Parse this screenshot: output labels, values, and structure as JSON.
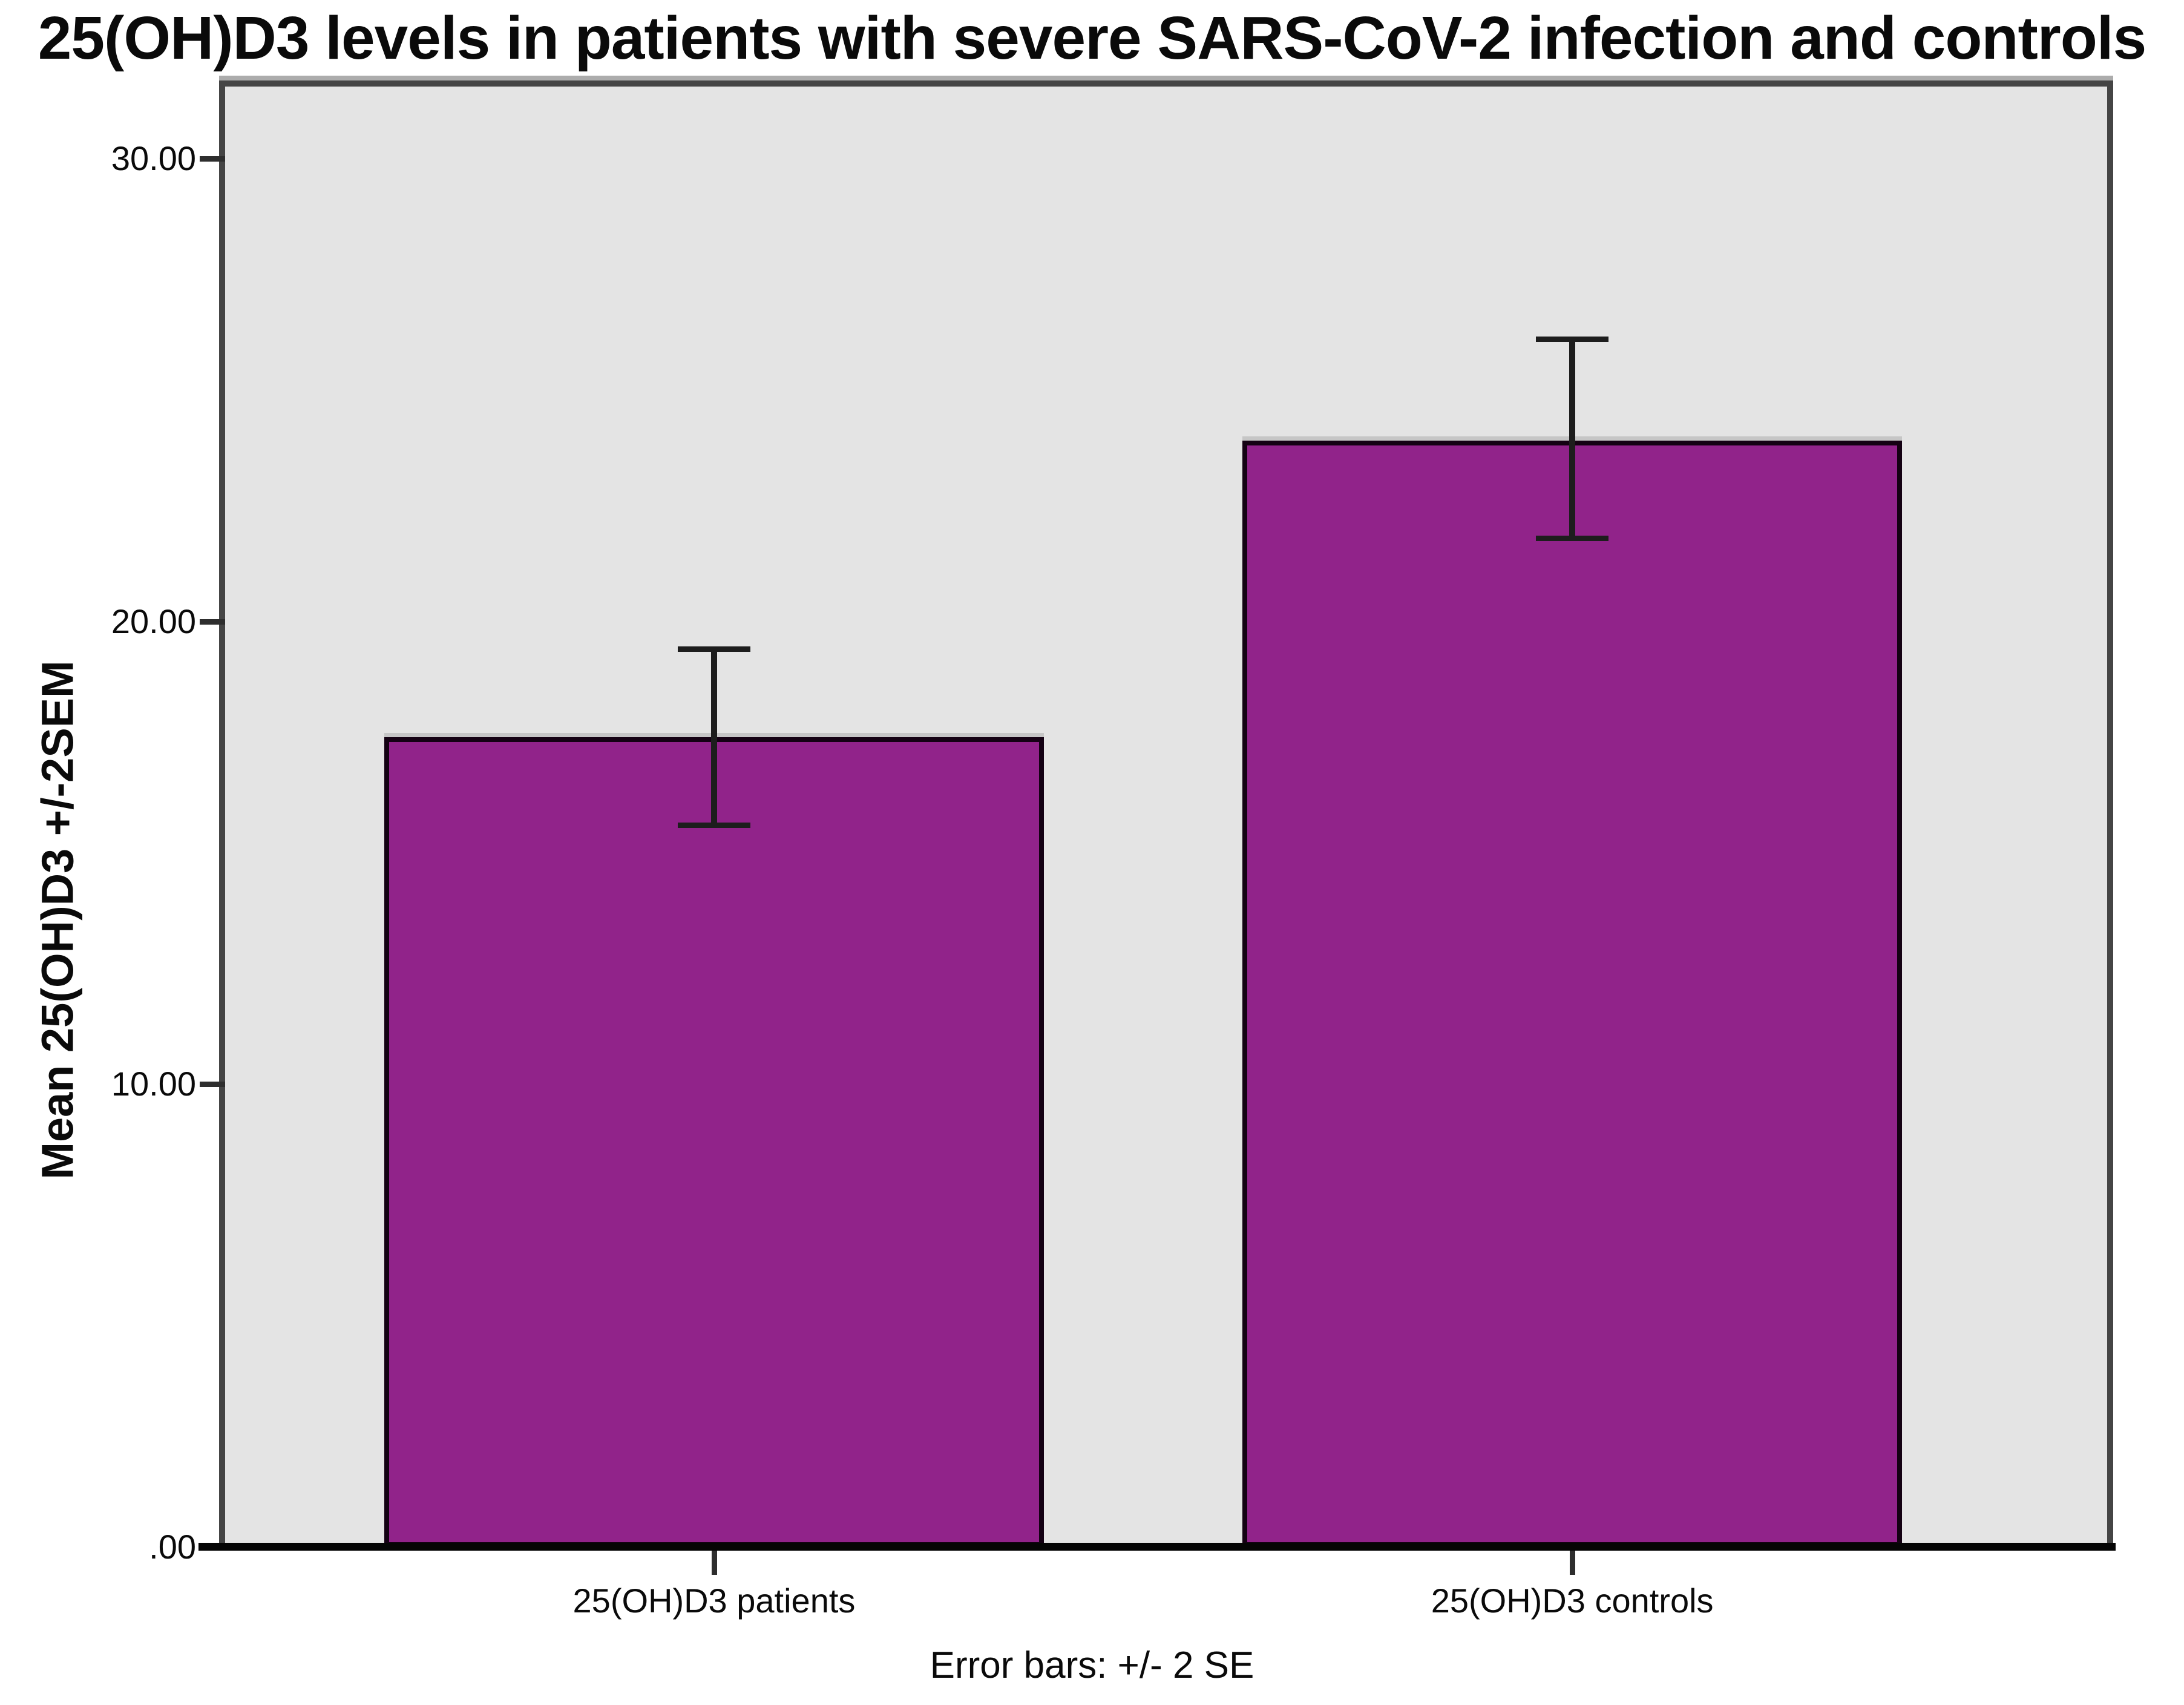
{
  "chart_data": {
    "type": "bar",
    "title": "25(OH)D3 levels in patients with severe SARS-CoV-2 infection and controls",
    "ylabel": "Mean 25(OH)D3 +/-2SEM",
    "xlabel": "",
    "caption": "Error bars: +/- 2 SE",
    "categories": [
      "25(OH)D3 patients",
      "25(OH)D3 controls"
    ],
    "values": [
      17.5,
      23.9
    ],
    "error_bars": {
      "definition": "+/- 2 SE",
      "upper": [
        19.4,
        26.1
      ],
      "lower": [
        15.6,
        21.8
      ]
    },
    "y_tick_labels": [
      ".00",
      "10.00",
      "20.00",
      "30.00"
    ],
    "y_tick_values": [
      0,
      10,
      20,
      30
    ],
    "ylim": [
      0,
      31.6
    ],
    "grid": false,
    "legend_position": "none",
    "bar_color": "#91238A",
    "bar_border_color": "#140113",
    "plot_background": "#E4E4E4",
    "frame_color": "#454545",
    "axis_color": "#050505"
  }
}
